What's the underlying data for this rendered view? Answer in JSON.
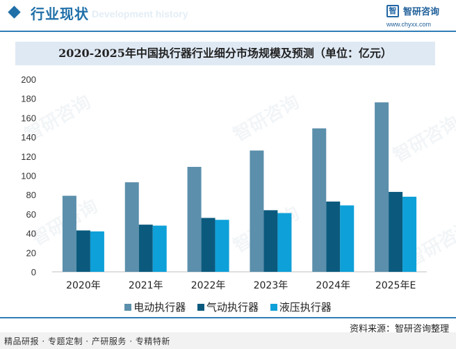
{
  "header": {
    "section_title": "行业现状",
    "section_watermark": "Development history",
    "brand_name": "智研咨询",
    "brand_url": "www.chyxx.com",
    "logo_glyph": "智"
  },
  "watermark_text": "智研咨询",
  "colors": {
    "accent": "#1f6fa8",
    "series": [
      "#5b8fab",
      "#0b5a7e",
      "#0ea0d8"
    ]
  },
  "chart_data": {
    "type": "bar",
    "title": "2020-2025年中国执行器行业细分市场规模及预测（单位：亿元）",
    "categories": [
      "2020年",
      "2021年",
      "2022年",
      "2023年",
      "2024年",
      "2025年E"
    ],
    "series": [
      {
        "name": "电动执行器",
        "values": [
          79,
          93,
          109,
          126,
          149,
          176
        ]
      },
      {
        "name": "气动执行器",
        "values": [
          43,
          49,
          56,
          64,
          73,
          83
        ]
      },
      {
        "name": "液压执行器",
        "values": [
          42,
          48,
          54,
          61,
          69,
          78
        ]
      }
    ],
    "ylim": [
      0,
      200
    ],
    "yticks": [
      0,
      20,
      40,
      60,
      80,
      100,
      120,
      140,
      160,
      180,
      200
    ],
    "legend_position": "bottom",
    "grid": false
  },
  "source": "资料来源：智研咨询整理",
  "footer": "精品研报 · 专题定制 · 产研服务 · 专精特新"
}
